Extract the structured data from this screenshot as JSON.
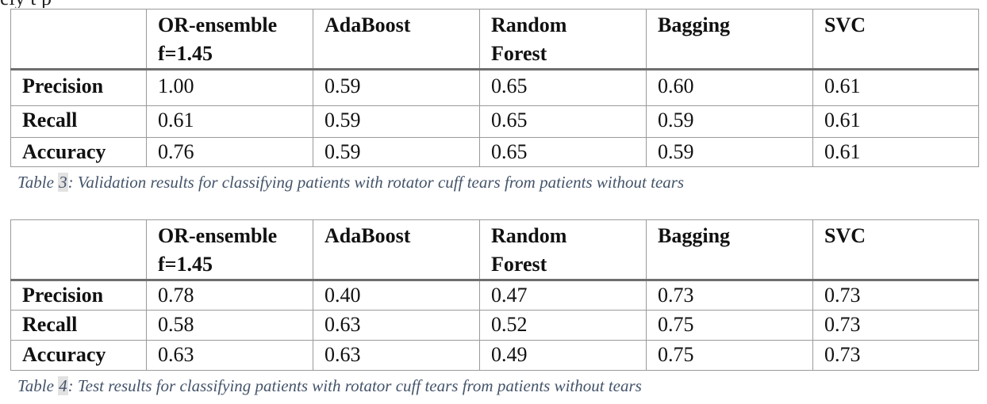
{
  "top_fragment": "ely    t      p",
  "tables": [
    {
      "headers": [
        "",
        "OR-ensemble",
        "AdaBoost",
        "Random",
        "Bagging",
        "SVC"
      ],
      "headers_line2": [
        "",
        "f=1.45",
        "",
        "Forest",
        "",
        ""
      ],
      "rows": [
        {
          "label": "Precision",
          "values": [
            "1.00",
            "0.59",
            "0.65",
            "0.60",
            "0.61"
          ]
        },
        {
          "label": "Recall",
          "values": [
            "0.61",
            "0.59",
            "0.65",
            "0.59",
            "0.61"
          ]
        },
        {
          "label": "Accuracy",
          "values": [
            "0.76",
            "0.59",
            "0.65",
            "0.59",
            "0.61"
          ]
        }
      ],
      "caption_prefix": "Table ",
      "caption_number": "3",
      "caption_text": ": Validation results for classifying patients with rotator cuff tears from patients without tears"
    },
    {
      "headers": [
        "",
        "OR-ensemble",
        "AdaBoost",
        "Random",
        "Bagging",
        "SVC"
      ],
      "headers_line2": [
        "",
        "f=1.45",
        "",
        "Forest",
        "",
        ""
      ],
      "rows": [
        {
          "label": "Precision",
          "values": [
            "0.78",
            "0.40",
            "0.47",
            "0.73",
            "0.73"
          ]
        },
        {
          "label": "Recall",
          "values": [
            "0.58",
            "0.63",
            "0.52",
            "0.75",
            "0.73"
          ]
        },
        {
          "label": "Accuracy",
          "values": [
            "0.63",
            "0.63",
            "0.49",
            "0.75",
            "0.73"
          ]
        }
      ],
      "caption_prefix": "Table ",
      "caption_number": "4",
      "caption_text": ": Test results for classifying patients with rotator cuff tears from patients without tears"
    }
  ],
  "colors": {
    "caption": "#44546a",
    "border": "#9a9a9a",
    "header_rule": "#6e6e6e",
    "number_highlight": "#e2e2e2"
  }
}
